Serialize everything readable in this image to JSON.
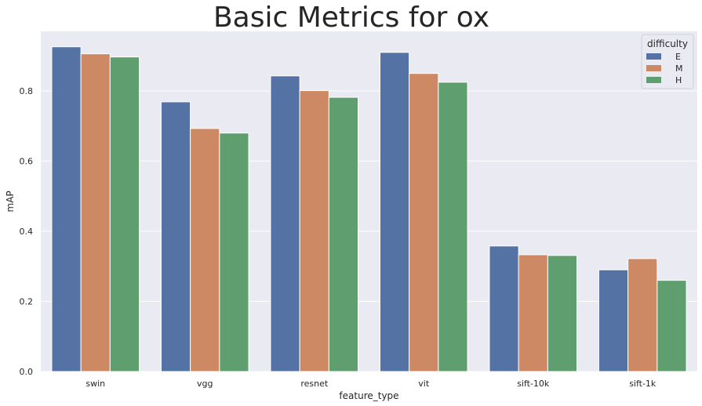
{
  "chart_data": {
    "type": "bar",
    "title": "Basic Metrics for ox",
    "xlabel": "feature_type",
    "ylabel": "mAP",
    "categories": [
      "swin",
      "vgg",
      "resnet",
      "vit",
      "sift-10k",
      "sift-1k"
    ],
    "series": [
      {
        "name": "E",
        "values": [
          0.926,
          0.769,
          0.843,
          0.91,
          0.358,
          0.29
        ]
      },
      {
        "name": "M",
        "values": [
          0.906,
          0.693,
          0.801,
          0.85,
          0.333,
          0.322
        ]
      },
      {
        "name": "H",
        "values": [
          0.897,
          0.68,
          0.782,
          0.825,
          0.331,
          0.26
        ]
      }
    ],
    "ylim": [
      0,
      0.97
    ],
    "yticks": [
      0.0,
      0.2,
      0.4,
      0.6,
      0.8
    ],
    "ytick_labels": [
      "0.0",
      "0.2",
      "0.4",
      "0.6",
      "0.8"
    ],
    "grid": true,
    "legend": {
      "title": "difficulty",
      "placement": "top-right"
    },
    "colors": {
      "E": "#5572a4",
      "M": "#cc8963",
      "H": "#5f9e6e",
      "background": "#eaeaf2",
      "grid": "#ffffff"
    }
  }
}
